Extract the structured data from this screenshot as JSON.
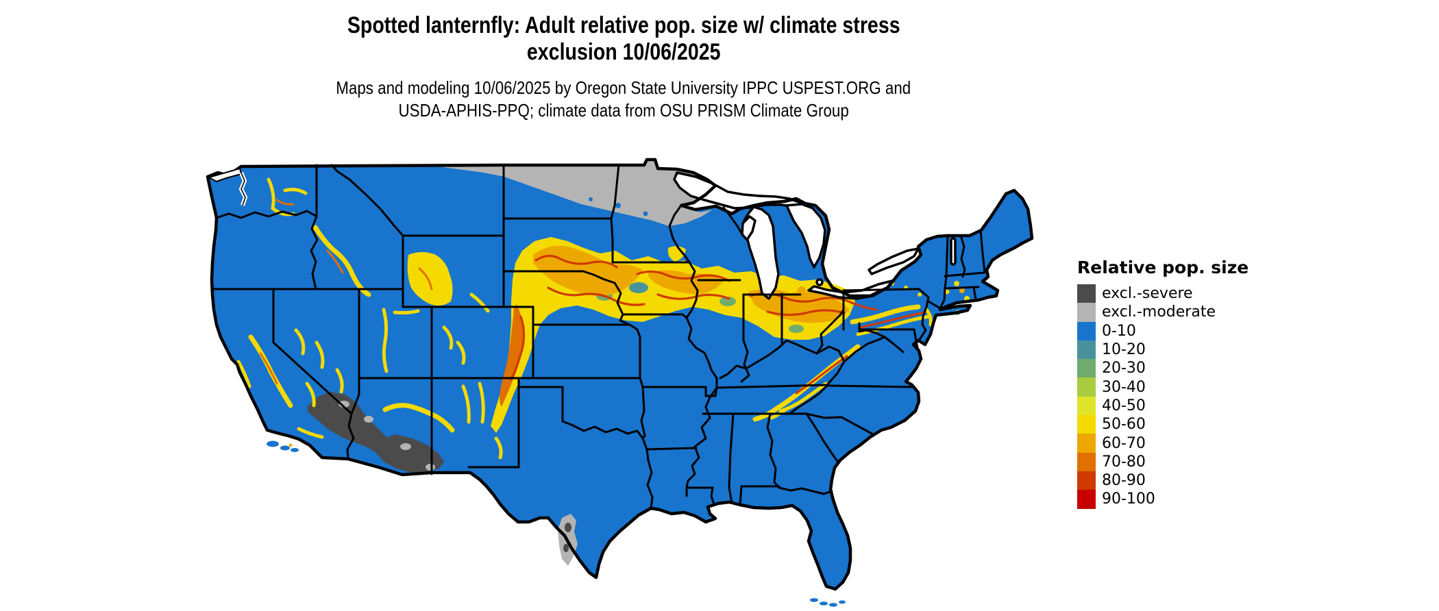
{
  "title": {
    "line1": "Spotted lanternfly: Adult relative pop. size w/ climate stress",
    "line2": "exclusion 10/06/2025"
  },
  "subtitle": {
    "line1": "Maps and modeling 10/06/2025 by Oregon State University IPPC USPEST.ORG and",
    "line2": "USDA-APHIS-PPQ; climate data from OSU PRISM Climate Group"
  },
  "legend": {
    "title": "Relative pop. size",
    "items": [
      {
        "label": "excl.-severe",
        "color": "#4B4B4B",
        "key": "severe"
      },
      {
        "label": "excl.-moderate",
        "color": "#B4B4B4",
        "key": "moderate"
      },
      {
        "label": "0-10",
        "color": "#1874CD",
        "key": "base"
      },
      {
        "label": "10-20",
        "color": "#4A929B",
        "key": "y10"
      },
      {
        "label": "20-30",
        "color": "#6FAC6E",
        "key": "y20"
      },
      {
        "label": "30-40",
        "color": "#A9CB3F",
        "key": "y30"
      },
      {
        "label": "40-50",
        "color": "#DFE42A",
        "key": "y40"
      },
      {
        "label": "50-60",
        "color": "#F4DA00",
        "key": "y50"
      },
      {
        "label": "60-70",
        "color": "#EDA800",
        "key": "y60"
      },
      {
        "label": "70-80",
        "color": "#E07000",
        "key": "y70"
      },
      {
        "label": "80-90",
        "color": "#D03A00",
        "key": "y80"
      },
      {
        "label": "90-100",
        "color": "#C60000",
        "key": "y90"
      }
    ]
  },
  "map_data": {
    "type": "raster-choropleth-map",
    "region": "Contiguous United States",
    "date_shown": "10/06/2025",
    "dominant_class": "0-10",
    "visible_patterns": [
      {
        "class": "excl.-moderate",
        "where": "northern Montana/North Dakota border strip, northern Minnesota, and a patch along the Rio Grande in south Texas"
      },
      {
        "class": "excl.-severe",
        "where": "southeastern California desert and southwestern/central Arizona"
      },
      {
        "class": "40-100 band",
        "where": "high-population band from western South Dakota/Nebraska through Iowa, northern Missouri, Illinois, Indiana, Ohio into Pennsylvania, plus eastern Colorado front range"
      },
      {
        "class": "40-80 streaks",
        "where": "Cascades (WA), central Idaho, Yellowstone/W Wyoming, Utah ranges, Nevada ranges, Sierra Nevada (CA), Mogollon Rim (AZ), New Mexico ranges, Appalachians from Pennsylvania through WV/VA to northern Georgia, southern New England"
      },
      {
        "class": "0-10",
        "where": "everything else (most of the country)"
      }
    ]
  }
}
